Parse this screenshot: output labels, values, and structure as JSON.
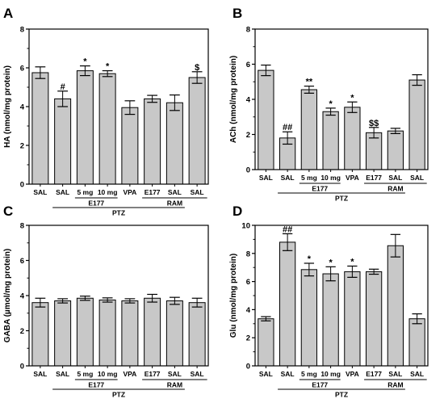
{
  "chart_data": [
    {
      "panel": "A",
      "type": "bar",
      "ylabel": "HA (nmol/mg protein)",
      "ylim": [
        0,
        8
      ],
      "yticks": [
        0,
        2,
        4,
        6,
        8
      ],
      "categories": [
        "SAL",
        "SAL",
        "5 mg",
        "10 mg",
        "VPA",
        "E177",
        "SAL",
        "SAL"
      ],
      "values": [
        5.75,
        4.4,
        5.85,
        5.7,
        3.95,
        4.4,
        4.2,
        5.5
      ],
      "errors": [
        0.3,
        0.4,
        0.25,
        0.15,
        0.35,
        0.18,
        0.4,
        0.3
      ],
      "annotations": [
        "",
        "#",
        "*",
        "*",
        "",
        "",
        "",
        "$"
      ],
      "groups": [
        {
          "label": "E177",
          "from": 2,
          "to": 3
        },
        {
          "label": "RAM",
          "from": 5,
          "to": 7
        },
        {
          "label": "PTZ",
          "from": 1,
          "to": 6
        }
      ],
      "bar_color": "#c8c8c8"
    },
    {
      "panel": "B",
      "type": "bar",
      "ylabel": "ACh (nmol/mg protein)",
      "ylim": [
        0,
        8
      ],
      "yticks": [
        0,
        2,
        4,
        6,
        8
      ],
      "categories": [
        "SAL",
        "SAL",
        "5 mg",
        "10 mg",
        "VPA",
        "E177",
        "SAL",
        "SAL"
      ],
      "values": [
        5.65,
        1.8,
        4.55,
        3.3,
        3.55,
        2.1,
        2.2,
        5.1
      ],
      "errors": [
        0.3,
        0.35,
        0.2,
        0.2,
        0.3,
        0.3,
        0.15,
        0.3
      ],
      "annotations": [
        "",
        "##",
        "**",
        "*",
        "*",
        "$$",
        "",
        ""
      ],
      "groups": [
        {
          "label": "E177",
          "from": 2,
          "to": 3
        },
        {
          "label": "RAM",
          "from": 5,
          "to": 7
        },
        {
          "label": "PTZ",
          "from": 1,
          "to": 6
        }
      ],
      "bar_color": "#c8c8c8"
    },
    {
      "panel": "C",
      "type": "bar",
      "ylabel": "GABA (µmol/mg protein)",
      "ylim": [
        0,
        8
      ],
      "yticks": [
        0,
        2,
        4,
        6,
        8
      ],
      "categories": [
        "SAL",
        "SAL",
        "5 mg",
        "10 mg",
        "VPA",
        "E177",
        "SAL",
        "SAL"
      ],
      "values": [
        3.6,
        3.7,
        3.85,
        3.75,
        3.7,
        3.85,
        3.7,
        3.6
      ],
      "errors": [
        0.25,
        0.12,
        0.12,
        0.12,
        0.12,
        0.22,
        0.2,
        0.25
      ],
      "annotations": [
        "",
        "",
        "",
        "",
        "",
        "",
        "",
        ""
      ],
      "groups": [
        {
          "label": "E177",
          "from": 2,
          "to": 3
        },
        {
          "label": "RAM",
          "from": 5,
          "to": 7
        },
        {
          "label": "PTZ",
          "from": 1,
          "to": 6
        }
      ],
      "bar_color": "#c8c8c8"
    },
    {
      "panel": "D",
      "type": "bar",
      "ylabel": "Glu (nmol/mg protein)",
      "ylim": [
        0,
        10
      ],
      "yticks": [
        0,
        2,
        4,
        6,
        8,
        10
      ],
      "categories": [
        "SAL",
        "SAL",
        "5 mg",
        "10 mg",
        "VPA",
        "E177",
        "SAL",
        "SAL"
      ],
      "values": [
        3.35,
        8.8,
        6.85,
        6.55,
        6.7,
        6.7,
        8.55,
        3.35
      ],
      "errors": [
        0.15,
        0.6,
        0.45,
        0.5,
        0.4,
        0.18,
        0.8,
        0.35
      ],
      "annotations": [
        "",
        "##",
        "*",
        "*",
        "*",
        "",
        "",
        ""
      ],
      "groups": [
        {
          "label": "E177",
          "from": 2,
          "to": 3
        },
        {
          "label": "RAM",
          "from": 5,
          "to": 7
        },
        {
          "label": "PTZ",
          "from": 1,
          "to": 6
        }
      ],
      "bar_color": "#c8c8c8"
    }
  ]
}
